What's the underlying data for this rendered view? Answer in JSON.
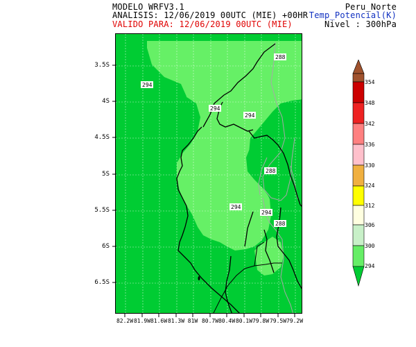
{
  "header": {
    "model": "MODELO WRFV3.1",
    "analysis": "ANALISIS: 12/06/2019 00UTC (MIE) +00HR",
    "valid": "VALIDO PARA: 12/06/2019 00UTC (MIE)",
    "region": "Peru_Norte",
    "variable": "Temp_Potencial(K)",
    "level": "Nivel : 300hPa"
  },
  "map": {
    "lat_labels": [
      "3.5S",
      "4S",
      "4.5S",
      "5S",
      "5.5S",
      "6S",
      "6.5S"
    ],
    "lon_labels": [
      "82.2W",
      "81.9W",
      "81.6W",
      "81.3W",
      "81W",
      "80.7W",
      "80.4W",
      "80.1W",
      "79.8W",
      "79.5W",
      "79.2W"
    ],
    "contour_labels": [
      "294",
      "294",
      "294",
      "288",
      "288",
      "294",
      "294",
      "288"
    ],
    "colors": {
      "dark_green": "#00cc33",
      "light_green": "#66f066",
      "contour_grey": "#a8a8a8"
    }
  },
  "colorbar": {
    "levels": [
      "354",
      "348",
      "342",
      "336",
      "330",
      "324",
      "312",
      "306",
      "300",
      "294"
    ],
    "colors": [
      "#a0522d",
      "#cc0000",
      "#ee2222",
      "#ff8080",
      "#ffc0cb",
      "#f0b040",
      "#ffff00",
      "#ffffe0",
      "#c8f0c8",
      "#66ee66",
      "#00cc33"
    ]
  }
}
